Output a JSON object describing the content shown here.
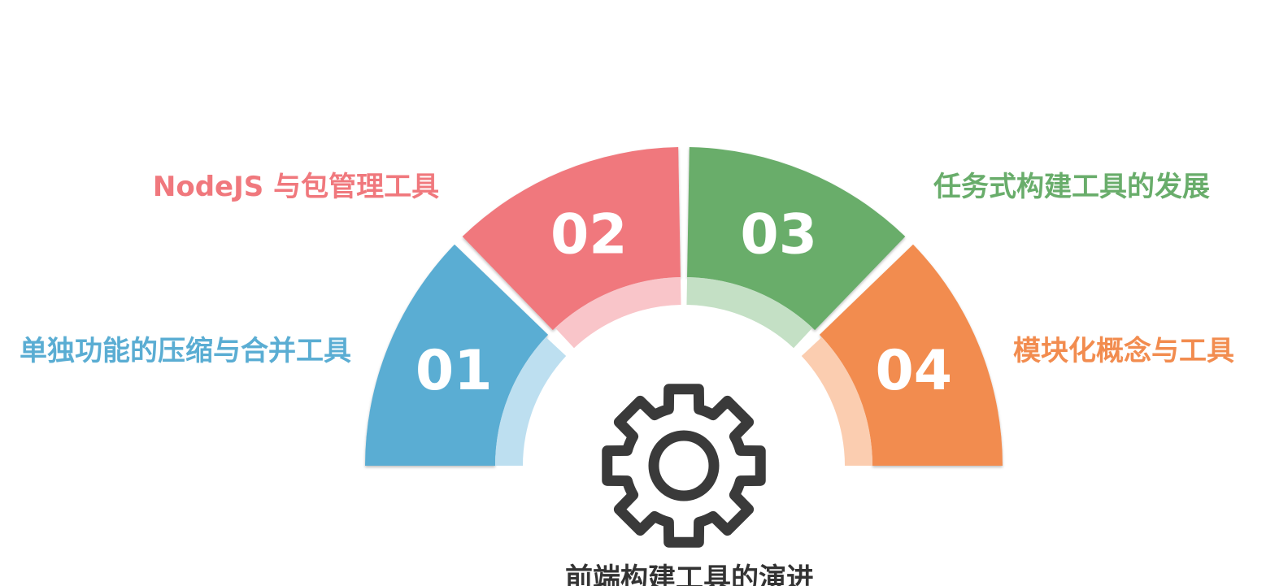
{
  "diagram": {
    "center_title": "前端构建工具的演进",
    "center_icon": "gear-icon",
    "segments": [
      {
        "number": "01",
        "label": "单独功能的压缩与合并工具",
        "color": "#5aadd3",
        "inner_color": "#bddff0"
      },
      {
        "number": "02",
        "label": "NodeJS 与包管理工具",
        "color": "#f0787d",
        "inner_color": "#f9c5c9"
      },
      {
        "number": "03",
        "label": "任务式构建工具的发展",
        "color": "#69ad6b",
        "inner_color": "#c4e0c5"
      },
      {
        "number": "04",
        "label": "模块化概念与工具",
        "color": "#f28c4f",
        "inner_color": "#fbcdb0"
      }
    ]
  }
}
